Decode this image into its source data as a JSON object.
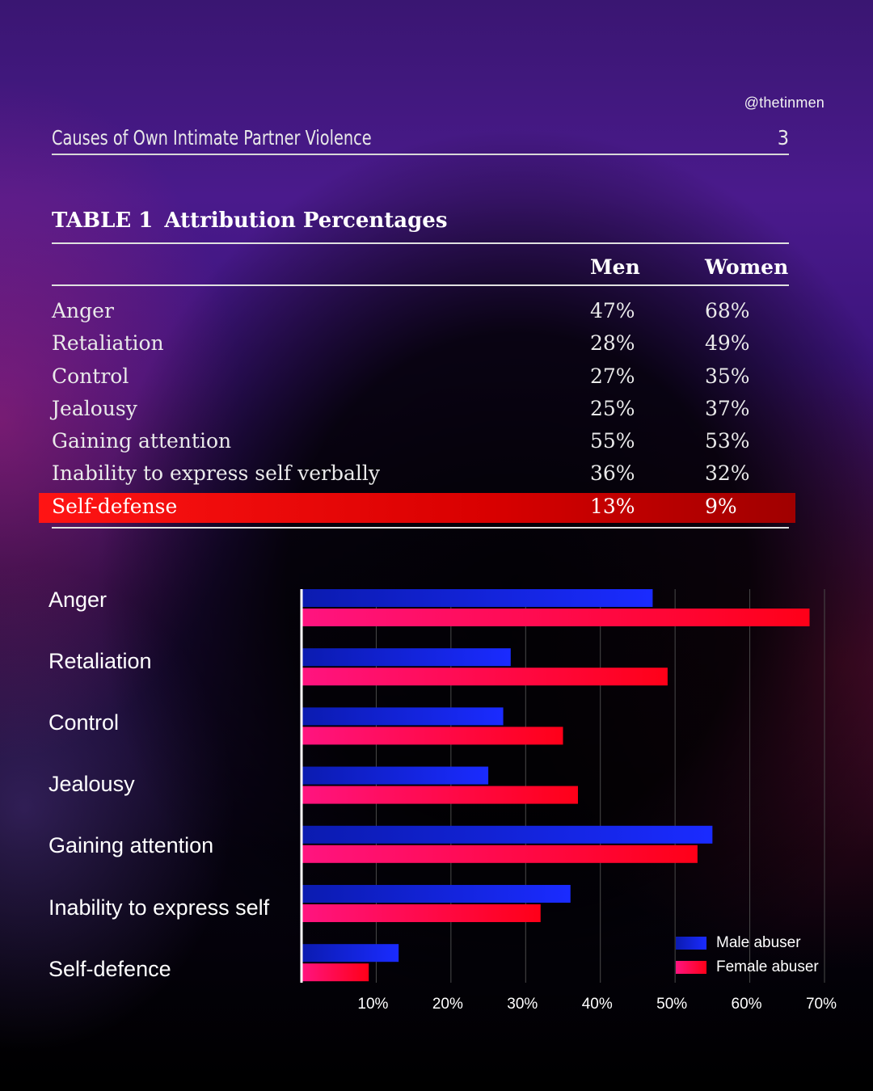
{
  "handle": "@thetinmen",
  "header": {
    "title": "Causes of Own Intimate Partner Violence",
    "page_number": "3"
  },
  "table": {
    "label": "TABLE 1",
    "title": "Attribution Percentages",
    "columns": [
      "Men",
      "Women"
    ],
    "rows": [
      {
        "cause": "Anger",
        "men": "47%",
        "women": "68%"
      },
      {
        "cause": "Retaliation",
        "men": "28%",
        "women": "49%"
      },
      {
        "cause": "Control",
        "men": "27%",
        "women": "35%"
      },
      {
        "cause": "Jealousy",
        "men": "25%",
        "women": "37%"
      },
      {
        "cause": "Gaining attention",
        "men": "55%",
        "women": "53%"
      },
      {
        "cause": "Inability to express self verbally",
        "men": "36%",
        "women": "32%"
      },
      {
        "cause": "Self-defense",
        "men": "13%",
        "women": "9%",
        "highlighted": true
      }
    ]
  },
  "chart_data": {
    "type": "bar",
    "orientation": "horizontal",
    "categories": [
      "Anger",
      "Retaliation",
      "Control",
      "Jealousy",
      "Gaining attention",
      "Inability to express self",
      "Self-defence"
    ],
    "series": [
      {
        "name": "Male abuser",
        "values": [
          47,
          28,
          27,
          25,
          55,
          36,
          13
        ],
        "color_start": "#0b1bb0",
        "color_end": "#1a2bff"
      },
      {
        "name": "Female abuser",
        "values": [
          68,
          49,
          35,
          37,
          53,
          32,
          9
        ],
        "color_start": "#ff1480",
        "color_end": "#ff0018"
      }
    ],
    "x_ticks": [
      "10%",
      "20%",
      "30%",
      "40%",
      "50%",
      "60%",
      "70%"
    ],
    "xlim": [
      0,
      70
    ],
    "grid": true,
    "legend_position": "bottom-right"
  }
}
